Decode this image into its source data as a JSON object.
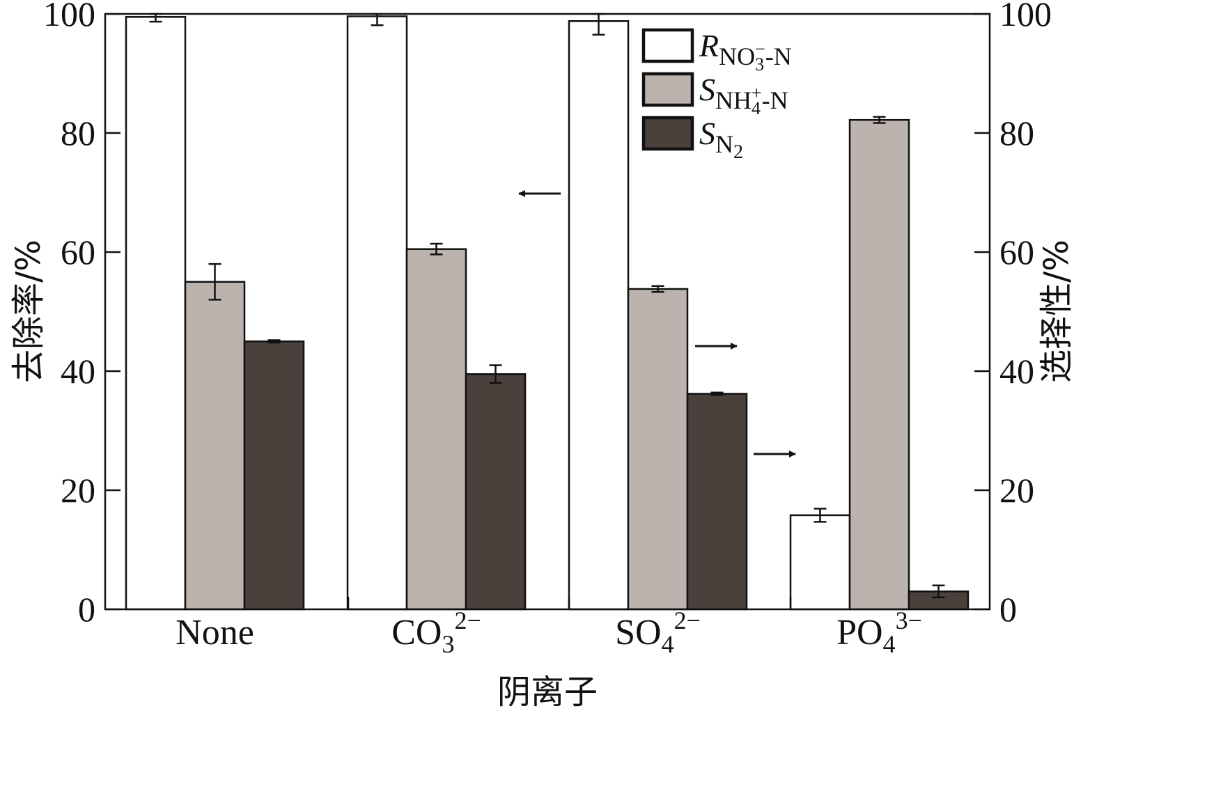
{
  "chart_data": {
    "type": "bar",
    "title": "",
    "xlabel": "阴离子",
    "ylabel_left": "去除率/%",
    "ylabel_right": "选择性/%",
    "ylim": [
      0,
      100
    ],
    "yticks": [
      0,
      20,
      40,
      60,
      80,
      100
    ],
    "categories": [
      {
        "base": "None",
        "sub": "",
        "sup": ""
      },
      {
        "base": "CO",
        "sub": "3",
        "sup": "2−"
      },
      {
        "base": "SO",
        "sub": "4",
        "sup": "2−"
      },
      {
        "base": "PO",
        "sub": "4",
        "sup": "3−"
      }
    ],
    "series": [
      {
        "name": "R_NO3−-N",
        "axis": "left",
        "color": "#ffffff",
        "values": [
          99.5,
          99.6,
          98.8,
          15.8
        ],
        "errors": [
          0.8,
          1.5,
          2.3,
          1.1
        ]
      },
      {
        "name": "S_NH4+-N",
        "axis": "right",
        "color": "#bcb3af",
        "values": [
          55.0,
          60.5,
          53.8,
          82.2
        ],
        "errors": [
          3.0,
          0.9,
          0.5,
          0.5
        ]
      },
      {
        "name": "S_N2",
        "axis": "right",
        "color": "#4a413c",
        "values": [
          45.0,
          39.5,
          36.2,
          3.0
        ],
        "errors": [
          0.2,
          1.5,
          0.2,
          1.0
        ]
      }
    ],
    "legend": {
      "position": "top-right",
      "items": [
        {
          "main": "R",
          "sub": "NO",
          "subsub": "3",
          "subsup": "−",
          "tail": "-N",
          "color": "#ffffff"
        },
        {
          "main": "S",
          "sub": "NH",
          "subsub": "4",
          "subsup": "+",
          "tail": "-N",
          "color": "#bcb3af"
        },
        {
          "main": "S",
          "sub": "N",
          "subsub": "2",
          "subsup": "",
          "tail": "",
          "color": "#4a413c"
        }
      ]
    },
    "annotations": [
      {
        "type": "arrow",
        "direction": "left",
        "points_to": "left-axis",
        "series": "R_NO3−-N"
      },
      {
        "type": "arrow",
        "direction": "right",
        "points_to": "right-axis",
        "series": "S_NH4+-N"
      },
      {
        "type": "arrow",
        "direction": "right",
        "points_to": "right-axis",
        "series": "S_N2"
      }
    ]
  }
}
